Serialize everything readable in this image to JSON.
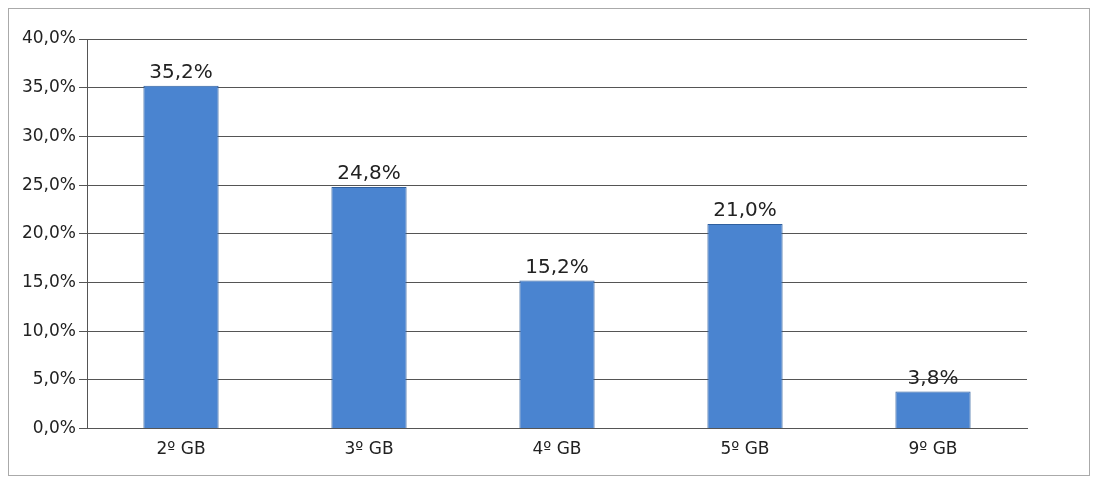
{
  "chart_data": {
    "type": "bar",
    "categories": [
      "2º GB",
      "3º GB",
      "4º GB",
      "5º GB",
      "9º GB"
    ],
    "values": [
      35.2,
      24.8,
      15.2,
      21.0,
      3.8
    ],
    "value_labels": [
      "35,2%",
      "24,8%",
      "15,2%",
      "21,0%",
      "3,8%"
    ],
    "color": "#4a84d0",
    "ylim": [
      0,
      40
    ],
    "yticks": [
      {
        "value": 0,
        "label": "0,0%"
      },
      {
        "value": 5,
        "label": "5,0%"
      },
      {
        "value": 10,
        "label": "10,0%"
      },
      {
        "value": 15,
        "label": "15,0%"
      },
      {
        "value": 20,
        "label": "20,0%"
      },
      {
        "value": 25,
        "label": "25,0%"
      },
      {
        "value": 30,
        "label": "30,0%"
      },
      {
        "value": 35,
        "label": "35,0%"
      },
      {
        "value": 40,
        "label": "40,0%"
      }
    ],
    "grid": "y",
    "legend": false
  }
}
